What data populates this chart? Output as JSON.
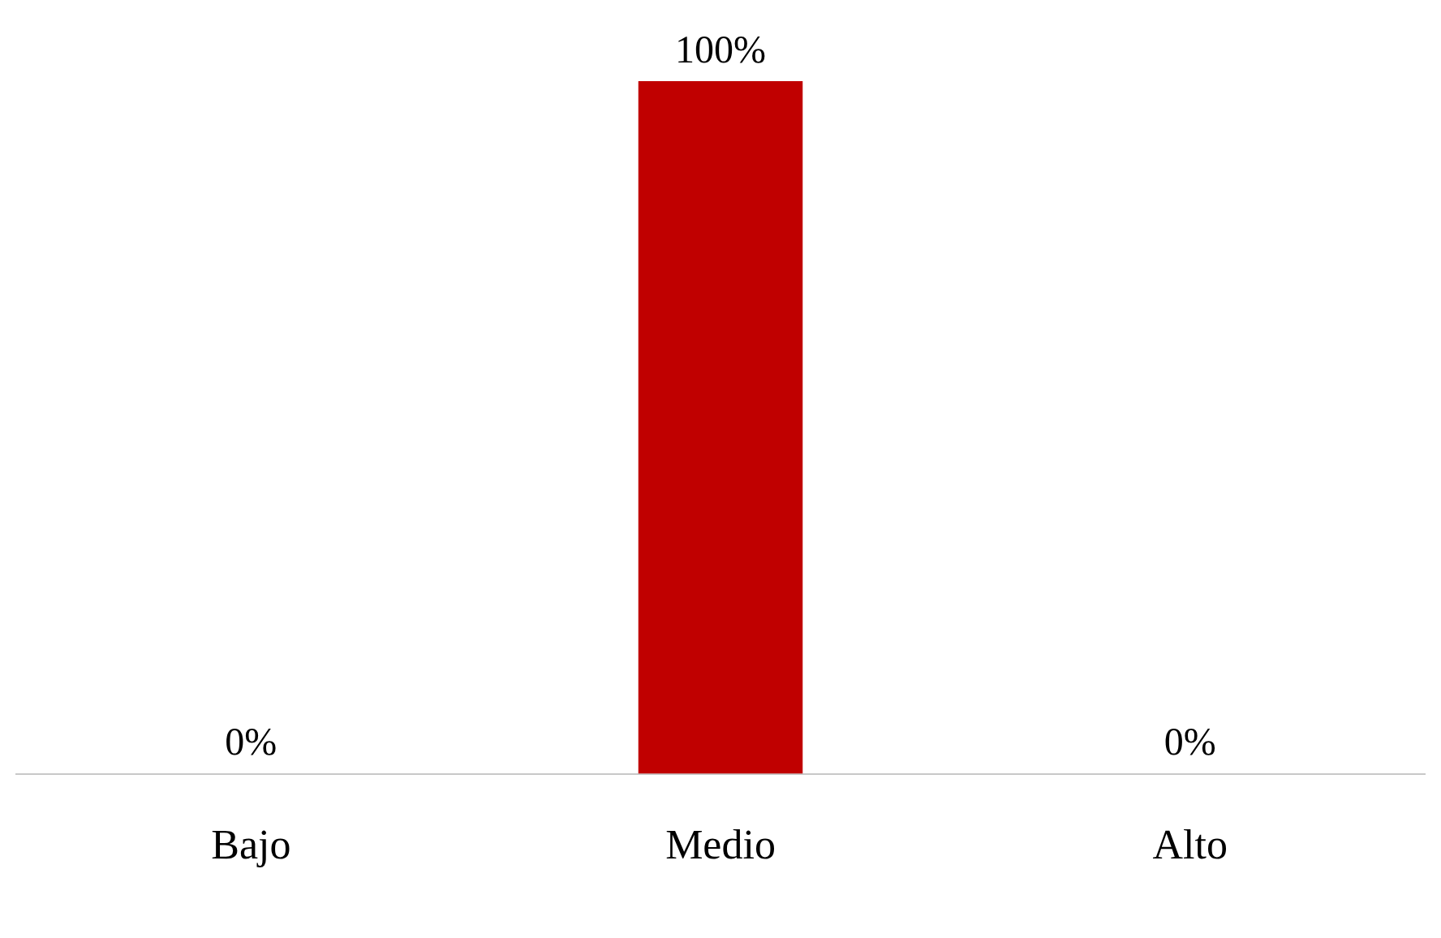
{
  "chart_data": {
    "type": "bar",
    "categories": [
      "Bajo",
      "Medio",
      "Alto"
    ],
    "values": [
      0,
      100,
      0
    ],
    "colors": [
      "#00883a",
      "#c00000",
      "#c09000"
    ],
    "value_labels": [
      "0%",
      "100%",
      "0%"
    ],
    "grid": false,
    "legend": false
  }
}
